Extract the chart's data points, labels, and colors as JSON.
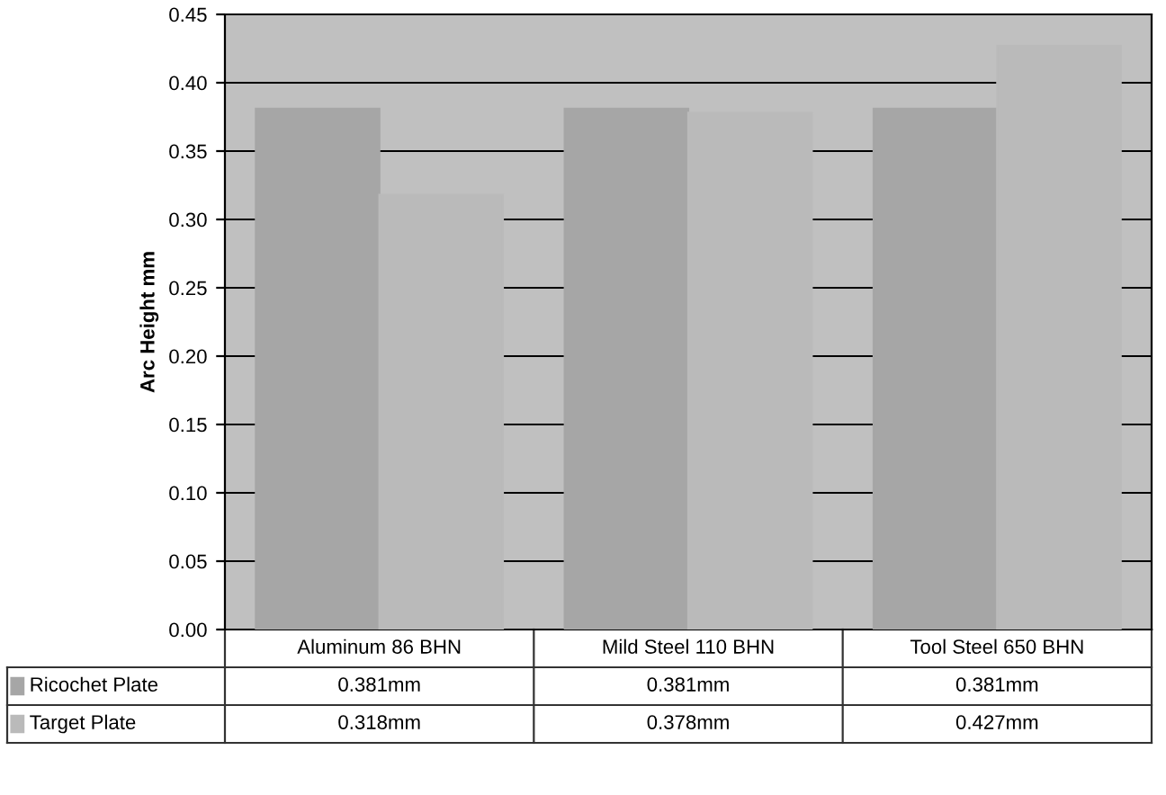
{
  "chart_data": {
    "type": "bar",
    "ylabel": "Arc Height mm",
    "categories": [
      "Aluminum 86 BHN",
      "Mild Steel 110 BHN",
      "Tool Steel 650 BHN"
    ],
    "series": [
      {
        "name": "Ricochet Plate",
        "color": "#a6a6a6",
        "values": [
          0.381,
          0.381,
          0.381
        ],
        "value_labels": [
          "0.381mm",
          "0.381mm",
          "0.381mm"
        ]
      },
      {
        "name": "Target Plate",
        "color": "#bababa",
        "values": [
          0.318,
          0.378,
          0.427
        ],
        "value_labels": [
          "0.318mm",
          "0.378mm",
          "0.427mm"
        ]
      }
    ],
    "ylim": [
      0,
      0.45
    ],
    "yticks": [
      {
        "value": 0,
        "label": "0.00"
      },
      {
        "value": 0.05,
        "label": "0.05"
      },
      {
        "value": 0.1,
        "label": "0.10"
      },
      {
        "value": 0.15,
        "label": "0.15"
      },
      {
        "value": 0.2,
        "label": "0.20"
      },
      {
        "value": 0.25,
        "label": "0.25"
      },
      {
        "value": 0.3,
        "label": "0.30"
      },
      {
        "value": 0.35,
        "label": "0.35"
      },
      {
        "value": 0.4,
        "label": "0.40"
      },
      {
        "value": 0.45,
        "label": "0.45"
      }
    ],
    "grid": "y",
    "legend": "bottom left"
  }
}
